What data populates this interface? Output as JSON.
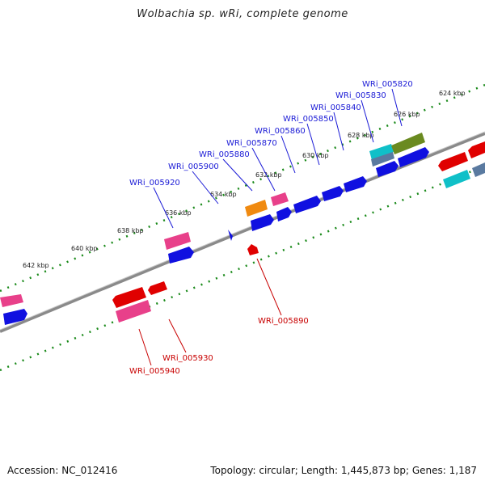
{
  "title": "Wolbachia sp. wRi, complete genome",
  "footer": {
    "accession": "Accession: NC_012416",
    "summary": "Topology: circular; Length: 1,445,873 bp; Genes: 1,187"
  },
  "scale_labels": [
    "624 kbp",
    "626 kbp",
    "628 kbp",
    "630 kbp",
    "632 kbp",
    "634 kbp",
    "636 kbp",
    "638 kbp",
    "640 kbp",
    "642 kbp"
  ],
  "forward_gene_labels": [
    "WRi_005820",
    "WRi_005830",
    "WRi_005840",
    "WRi_005850",
    "WRi_005860",
    "WRi_005870",
    "WRi_005880",
    "WRi_005900",
    "WRi_005920"
  ],
  "reverse_gene_labels": [
    "WRi_005890",
    "WRi_005930",
    "WRi_005940"
  ],
  "colors": {
    "backbone": "#8a8a8a",
    "scale_dots": "#1a8a1a",
    "forward_label": "#1a1ad6",
    "reverse_label": "#c80000",
    "gene_blue": "#1010e0",
    "gene_red": "#e00000",
    "gene_pink": "#e8408a",
    "gene_orange": "#f08a10",
    "gene_cyan": "#10c0c8",
    "gene_olive": "#6a8a20",
    "gene_steel": "#5a7aa0"
  }
}
